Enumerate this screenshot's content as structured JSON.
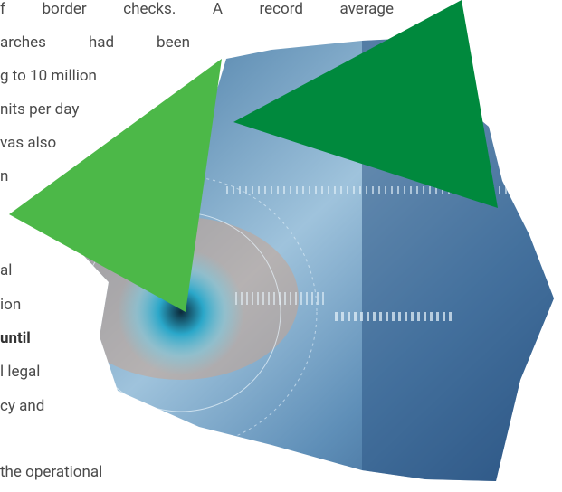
{
  "text_lines": [
    "f border checks. A record average",
    "arches had been",
    "g to 10 million",
    "nits per day",
    "vas also",
    "n",
    "al",
    "ion",
    "until",
    "l legal",
    "cy and",
    "the operational"
  ]
}
